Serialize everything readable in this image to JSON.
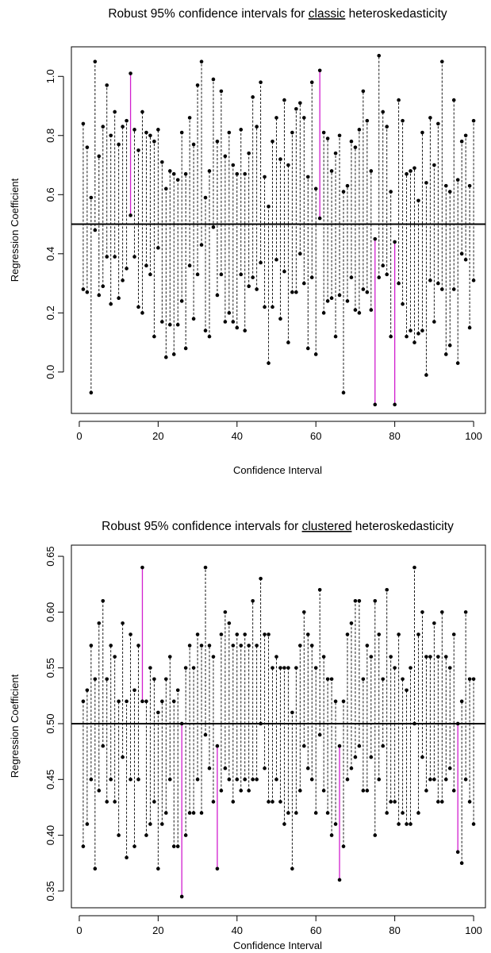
{
  "chart_data": [
    {
      "type": "interval",
      "title": {
        "pre": "Robust 95% confidence intervals for ",
        "underlined": "classic",
        "post": " heteroskedasticity"
      },
      "xlabel": "Confidence Interval",
      "ylabel": "Regression Coefficient",
      "xlim": [
        -2,
        103
      ],
      "ylim": [
        -0.14,
        1.1
      ],
      "xticks": [
        0,
        20,
        40,
        60,
        80,
        100
      ],
      "yticks": [
        0.0,
        0.2,
        0.4,
        0.6,
        0.8,
        1.0
      ],
      "ytick_labels": [
        "0.0",
        "0.2",
        "0.4",
        "0.6",
        "0.8",
        "1.0"
      ],
      "reference_line": 0.5,
      "colors": {
        "covering": "#000000",
        "missing": "#d11fcf",
        "reference": "#000000"
      },
      "missing_intervals": [
        13,
        61,
        75,
        80
      ],
      "lower": [
        0.28,
        0.27,
        -0.07,
        0.48,
        0.26,
        0.29,
        0.39,
        0.23,
        0.39,
        0.25,
        0.31,
        0.35,
        0.53,
        0.39,
        0.22,
        0.2,
        0.36,
        0.33,
        0.12,
        0.42,
        0.17,
        0.05,
        0.16,
        0.06,
        0.16,
        0.24,
        0.08,
        0.36,
        0.18,
        0.33,
        0.43,
        0.14,
        0.12,
        0.49,
        0.26,
        0.33,
        0.17,
        0.2,
        0.17,
        0.15,
        0.33,
        0.14,
        0.29,
        0.32,
        0.28,
        0.37,
        0.22,
        0.03,
        0.22,
        0.38,
        0.18,
        0.34,
        0.1,
        0.27,
        0.27,
        0.4,
        0.3,
        0.08,
        0.32,
        0.06,
        0.52,
        0.2,
        0.24,
        0.25,
        0.12,
        0.26,
        -0.07,
        0.24,
        0.32,
        0.21,
        0.2,
        0.28,
        0.27,
        0.21,
        -0.11,
        0.32,
        0.36,
        0.33,
        0.12,
        -0.11,
        0.3,
        0.23,
        0.12,
        0.14,
        0.1,
        0.13,
        0.14,
        -0.01,
        0.31,
        0.17,
        0.3,
        0.28,
        0.06,
        0.09,
        0.28,
        0.03,
        0.4,
        0.38,
        0.15,
        0.31
      ],
      "upper": [
        0.84,
        0.76,
        0.59,
        1.05,
        0.73,
        0.83,
        0.97,
        0.8,
        0.88,
        0.77,
        0.83,
        0.85,
        1.01,
        0.82,
        0.75,
        0.88,
        0.81,
        0.8,
        0.78,
        0.82,
        0.71,
        0.62,
        0.68,
        0.67,
        0.65,
        0.81,
        0.67,
        0.86,
        0.77,
        0.97,
        1.05,
        0.59,
        0.68,
        0.99,
        0.78,
        0.95,
        0.73,
        0.81,
        0.7,
        0.67,
        0.82,
        0.67,
        0.74,
        0.93,
        0.83,
        0.98,
        0.66,
        0.56,
        0.78,
        0.86,
        0.72,
        0.92,
        0.7,
        0.81,
        0.89,
        0.91,
        0.86,
        0.66,
        0.98,
        0.62,
        1.02,
        0.81,
        0.79,
        0.68,
        0.74,
        0.8,
        0.61,
        0.63,
        0.78,
        0.76,
        0.82,
        0.95,
        0.85,
        0.68,
        0.45,
        1.07,
        0.88,
        0.83,
        0.61,
        0.44,
        0.92,
        0.85,
        0.67,
        0.68,
        0.69,
        0.58,
        0.81,
        0.64,
        0.86,
        0.7,
        0.84,
        1.05,
        0.63,
        0.61,
        0.92,
        0.65,
        0.78,
        0.8,
        0.63,
        0.85
      ]
    },
    {
      "type": "interval",
      "title": {
        "pre": "Robust 95% confidence intervals for ",
        "underlined": "clustered",
        "post": " heteroskedasticity"
      },
      "xlabel": "Confidence Interval",
      "ylabel": "Regression Coefficient",
      "xlim": [
        -2,
        103
      ],
      "ylim": [
        0.335,
        0.66
      ],
      "xticks": [
        0,
        20,
        40,
        60,
        80,
        100
      ],
      "yticks": [
        0.35,
        0.4,
        0.45,
        0.5,
        0.55,
        0.6,
        0.65
      ],
      "ytick_labels": [
        "0.35",
        "0.40",
        "0.45",
        "0.50",
        "0.55",
        "0.60",
        "0.65"
      ],
      "reference_line": 0.5,
      "colors": {
        "covering": "#000000",
        "missing": "#d11fcf",
        "reference": "#000000"
      },
      "missing_intervals": [
        16,
        26,
        35,
        66,
        96
      ],
      "lower": [
        0.39,
        0.41,
        0.45,
        0.37,
        0.44,
        0.48,
        0.43,
        0.45,
        0.43,
        0.4,
        0.47,
        0.38,
        0.45,
        0.39,
        0.45,
        0.52,
        0.4,
        0.41,
        0.43,
        0.37,
        0.41,
        0.42,
        0.45,
        0.39,
        0.39,
        0.345,
        0.4,
        0.42,
        0.42,
        0.45,
        0.42,
        0.49,
        0.46,
        0.43,
        0.37,
        0.44,
        0.46,
        0.45,
        0.43,
        0.45,
        0.44,
        0.45,
        0.44,
        0.45,
        0.45,
        0.5,
        0.46,
        0.43,
        0.43,
        0.45,
        0.43,
        0.41,
        0.42,
        0.37,
        0.42,
        0.44,
        0.48,
        0.46,
        0.45,
        0.42,
        0.49,
        0.44,
        0.42,
        0.4,
        0.41,
        0.36,
        0.39,
        0.45,
        0.46,
        0.47,
        0.48,
        0.44,
        0.44,
        0.47,
        0.4,
        0.45,
        0.48,
        0.42,
        0.43,
        0.43,
        0.41,
        0.42,
        0.41,
        0.41,
        0.5,
        0.42,
        0.47,
        0.44,
        0.45,
        0.45,
        0.43,
        0.43,
        0.45,
        0.46,
        0.44,
        0.385,
        0.375,
        0.45,
        0.43,
        0.41
      ],
      "upper": [
        0.52,
        0.53,
        0.57,
        0.54,
        0.59,
        0.61,
        0.54,
        0.57,
        0.56,
        0.52,
        0.59,
        0.52,
        0.58,
        0.53,
        0.57,
        0.64,
        0.52,
        0.55,
        0.54,
        0.51,
        0.52,
        0.54,
        0.56,
        0.52,
        0.53,
        0.5,
        0.55,
        0.57,
        0.55,
        0.58,
        0.57,
        0.64,
        0.57,
        0.56,
        0.48,
        0.58,
        0.6,
        0.59,
        0.57,
        0.58,
        0.57,
        0.58,
        0.57,
        0.61,
        0.57,
        0.63,
        0.58,
        0.58,
        0.55,
        0.56,
        0.55,
        0.55,
        0.55,
        0.51,
        0.55,
        0.57,
        0.6,
        0.58,
        0.57,
        0.55,
        0.62,
        0.56,
        0.54,
        0.54,
        0.52,
        0.48,
        0.52,
        0.58,
        0.59,
        0.61,
        0.61,
        0.54,
        0.57,
        0.56,
        0.61,
        0.58,
        0.54,
        0.62,
        0.56,
        0.55,
        0.58,
        0.54,
        0.53,
        0.55,
        0.64,
        0.58,
        0.6,
        0.56,
        0.56,
        0.59,
        0.56,
        0.6,
        0.56,
        0.55,
        0.58,
        0.5,
        0.52,
        0.6,
        0.54,
        0.54
      ]
    }
  ]
}
